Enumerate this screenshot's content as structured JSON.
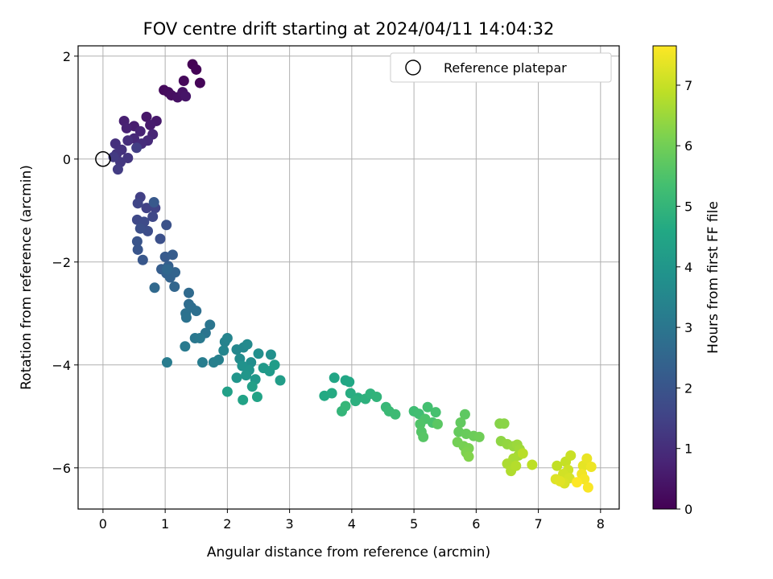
{
  "chart_data": {
    "type": "scatter",
    "title": "FOV centre drift starting at 2024/04/11 14:04:32",
    "xlabel": "Angular distance from reference (arcmin)",
    "ylabel": "Rotation from reference (arcmin)",
    "xlim": [
      -0.4,
      8.3
    ],
    "ylim": [
      -6.8,
      2.2
    ],
    "xticks": [
      "0",
      "1",
      "2",
      "3",
      "4",
      "5",
      "6",
      "7",
      "8"
    ],
    "yticks": [
      "−6",
      "−4",
      "−2",
      "0",
      "2"
    ],
    "grid": true,
    "legend": {
      "position": "top-right",
      "entries": [
        "Reference platepar"
      ]
    },
    "reference_point": {
      "x": 0,
      "y": 0
    },
    "colorbar": {
      "label": "Hours from first FF file",
      "range": [
        0,
        7.65
      ],
      "ticks": [
        "0",
        "1",
        "2",
        "3",
        "4",
        "5",
        "6",
        "7"
      ],
      "colormap": "viridis"
    },
    "series": [
      {
        "points": [
          [
            1.44,
            1.84
          ],
          [
            1.5,
            1.74
          ],
          [
            1.56,
            1.48
          ],
          [
            1.3,
            1.52
          ],
          [
            0.98,
            1.34
          ],
          [
            1.05,
            1.3
          ],
          [
            1.1,
            1.24
          ],
          [
            1.2,
            1.2
          ],
          [
            1.28,
            1.3
          ],
          [
            1.33,
            1.22
          ],
          [
            0.7,
            0.82
          ],
          [
            0.86,
            0.74
          ],
          [
            0.76,
            0.66
          ],
          [
            0.5,
            0.64
          ],
          [
            0.34,
            0.74
          ],
          [
            0.38,
            0.6
          ],
          [
            0.6,
            0.54
          ],
          [
            0.8,
            0.48
          ],
          [
            0.5,
            0.4
          ],
          [
            0.72,
            0.36
          ],
          [
            0.62,
            0.3
          ],
          [
            0.4,
            0.36
          ],
          [
            0.2,
            0.3
          ],
          [
            0.3,
            0.18
          ],
          [
            0.22,
            0.1
          ],
          [
            0.4,
            0.02
          ],
          [
            0.28,
            -0.06
          ],
          [
            0.17,
            0.04
          ],
          [
            0.24,
            -0.2
          ],
          [
            0.54,
            0.22
          ],
          [
            0.6,
            -0.74
          ],
          [
            0.7,
            -0.95
          ],
          [
            0.84,
            -0.95
          ],
          [
            0.56,
            -0.86
          ],
          [
            0.8,
            -1.12
          ],
          [
            0.55,
            -1.18
          ],
          [
            0.66,
            -1.22
          ],
          [
            0.72,
            -1.4
          ],
          [
            0.6,
            -1.35
          ],
          [
            0.92,
            -1.55
          ],
          [
            1.02,
            -1.28
          ],
          [
            0.55,
            -1.6
          ],
          [
            0.56,
            -1.76
          ],
          [
            0.64,
            -1.96
          ],
          [
            0.82,
            -0.84
          ],
          [
            1.0,
            -1.9
          ],
          [
            1.12,
            -1.86
          ],
          [
            0.94,
            -2.14
          ],
          [
            1.05,
            -2.08
          ],
          [
            1.02,
            -2.22
          ],
          [
            1.08,
            -2.3
          ],
          [
            1.16,
            -2.2
          ],
          [
            1.15,
            -2.48
          ],
          [
            1.03,
            -2.14
          ],
          [
            0.83,
            -2.5
          ],
          [
            1.38,
            -2.6
          ],
          [
            1.38,
            -2.82
          ],
          [
            1.42,
            -2.88
          ],
          [
            1.5,
            -2.95
          ],
          [
            1.33,
            -3.0
          ],
          [
            1.34,
            -3.08
          ],
          [
            1.65,
            -3.38
          ],
          [
            1.72,
            -3.22
          ],
          [
            1.48,
            -3.48
          ],
          [
            1.56,
            -3.48
          ],
          [
            1.32,
            -3.64
          ],
          [
            1.03,
            -3.95
          ],
          [
            1.6,
            -3.95
          ],
          [
            1.78,
            -3.95
          ],
          [
            1.86,
            -3.9
          ],
          [
            1.96,
            -3.55
          ],
          [
            2.0,
            -3.48
          ],
          [
            1.94,
            -3.72
          ],
          [
            2.15,
            -3.7
          ],
          [
            2.26,
            -3.66
          ],
          [
            2.32,
            -3.6
          ],
          [
            2.2,
            -3.88
          ],
          [
            2.38,
            -3.95
          ],
          [
            2.5,
            -3.78
          ],
          [
            2.7,
            -3.8
          ],
          [
            2.24,
            -4.02
          ],
          [
            2.35,
            -4.1
          ],
          [
            2.15,
            -4.25
          ],
          [
            2.3,
            -4.2
          ],
          [
            2.45,
            -4.28
          ],
          [
            2.58,
            -4.06
          ],
          [
            2.68,
            -4.12
          ],
          [
            2.76,
            -4.0
          ],
          [
            2.85,
            -4.3
          ],
          [
            2.4,
            -4.42
          ],
          [
            2.0,
            -4.52
          ],
          [
            2.25,
            -4.68
          ],
          [
            2.48,
            -4.62
          ],
          [
            3.72,
            -4.25
          ],
          [
            3.9,
            -4.3
          ],
          [
            3.96,
            -4.33
          ],
          [
            3.56,
            -4.6
          ],
          [
            3.68,
            -4.55
          ],
          [
            3.98,
            -4.55
          ],
          [
            4.1,
            -4.64
          ],
          [
            4.06,
            -4.7
          ],
          [
            4.22,
            -4.66
          ],
          [
            4.3,
            -4.56
          ],
          [
            4.4,
            -4.62
          ],
          [
            3.84,
            -4.9
          ],
          [
            3.9,
            -4.8
          ],
          [
            4.55,
            -4.82
          ],
          [
            4.6,
            -4.9
          ],
          [
            4.7,
            -4.96
          ],
          [
            5.0,
            -4.9
          ],
          [
            5.08,
            -4.95
          ],
          [
            5.22,
            -4.82
          ],
          [
            5.35,
            -4.92
          ],
          [
            5.3,
            -5.12
          ],
          [
            5.18,
            -5.05
          ],
          [
            5.1,
            -5.15
          ],
          [
            5.12,
            -5.3
          ],
          [
            5.15,
            -5.4
          ],
          [
            5.38,
            -5.15
          ],
          [
            5.82,
            -4.96
          ],
          [
            5.75,
            -5.12
          ],
          [
            5.72,
            -5.3
          ],
          [
            5.84,
            -5.34
          ],
          [
            5.96,
            -5.38
          ],
          [
            6.05,
            -5.4
          ],
          [
            5.7,
            -5.5
          ],
          [
            5.8,
            -5.58
          ],
          [
            5.88,
            -5.62
          ],
          [
            5.84,
            -5.7
          ],
          [
            5.88,
            -5.78
          ],
          [
            6.38,
            -5.14
          ],
          [
            6.45,
            -5.14
          ],
          [
            6.4,
            -5.48
          ],
          [
            6.5,
            -5.54
          ],
          [
            6.6,
            -5.58
          ],
          [
            6.66,
            -5.55
          ],
          [
            6.7,
            -5.64
          ],
          [
            6.68,
            -5.76
          ],
          [
            6.6,
            -5.82
          ],
          [
            6.5,
            -5.92
          ],
          [
            6.56,
            -6.06
          ],
          [
            6.64,
            -5.96
          ],
          [
            6.75,
            -5.72
          ],
          [
            6.9,
            -5.94
          ],
          [
            7.3,
            -5.96
          ],
          [
            7.44,
            -5.88
          ],
          [
            7.52,
            -5.76
          ],
          [
            7.48,
            -6.04
          ],
          [
            7.4,
            -6.12
          ],
          [
            7.5,
            -6.2
          ],
          [
            7.42,
            -6.3
          ],
          [
            7.28,
            -6.22
          ],
          [
            7.35,
            -6.26
          ],
          [
            7.72,
            -5.96
          ],
          [
            7.78,
            -5.82
          ],
          [
            7.85,
            -5.98
          ],
          [
            7.7,
            -6.12
          ],
          [
            7.74,
            -6.22
          ],
          [
            7.8,
            -6.38
          ],
          [
            7.62,
            -6.28
          ]
        ]
      }
    ]
  }
}
